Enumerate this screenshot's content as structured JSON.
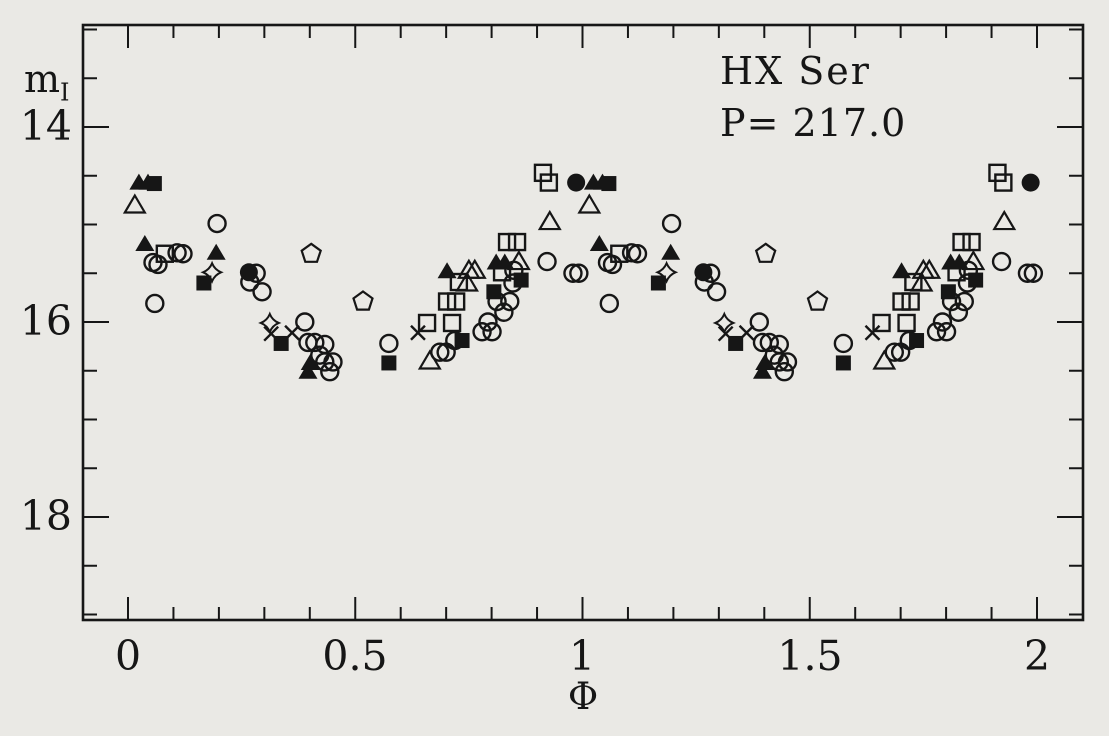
{
  "page": {
    "background_color": "#eae9e5",
    "ink_color": "#161616"
  },
  "chart_data": {
    "type": "scatter",
    "title": "HX Ser",
    "subtitle": "P= 217.0",
    "xlabel": "Φ",
    "ylabel": "m",
    "ylabel_sub": "I",
    "x_axis": {
      "min": -0.1,
      "max": 2.1,
      "major_ticks": [
        0,
        0.5,
        1,
        1.5,
        2
      ],
      "major_labels": [
        "0",
        "0.5",
        "1",
        "1.5",
        "2"
      ],
      "minor_step": 0.1
    },
    "y_axis": {
      "min": 12.95,
      "max": 19.05,
      "inverted": true,
      "major_ticks": [
        14,
        16,
        18
      ],
      "major_labels": [
        "14",
        "16",
        "18"
      ],
      "minor_step": 0.5
    },
    "legend": "none",
    "grid": false,
    "phase_plotted_twice": true,
    "series": [
      {
        "name": "open-circle",
        "marker": "open_circle",
        "points": [
          [
            0.196,
            14.99
          ],
          [
            0.108,
            15.29
          ],
          [
            0.121,
            15.3
          ],
          [
            0.055,
            15.39
          ],
          [
            0.066,
            15.41
          ],
          [
            0.059,
            15.81
          ],
          [
            0.282,
            15.5
          ],
          [
            0.268,
            15.59
          ],
          [
            0.295,
            15.69
          ],
          [
            0.389,
            16.0
          ],
          [
            0.396,
            16.21
          ],
          [
            0.411,
            16.21
          ],
          [
            0.433,
            16.23
          ],
          [
            0.422,
            16.34
          ],
          [
            0.433,
            16.41
          ],
          [
            0.451,
            16.41
          ],
          [
            0.444,
            16.51
          ],
          [
            0.574,
            16.22
          ],
          [
            0.686,
            16.31
          ],
          [
            0.7,
            16.31
          ],
          [
            0.719,
            16.19
          ],
          [
            0.779,
            16.1
          ],
          [
            0.801,
            16.1
          ],
          [
            0.792,
            16.0
          ],
          [
            0.812,
            15.79
          ],
          [
            0.84,
            15.79
          ],
          [
            0.827,
            15.9
          ],
          [
            0.849,
            15.47
          ],
          [
            0.847,
            15.6
          ],
          [
            0.922,
            15.38
          ],
          [
            0.979,
            15.5
          ],
          [
            0.992,
            15.5
          ]
        ]
      },
      {
        "name": "open-square",
        "marker": "open_square",
        "points": [
          [
            0.081,
            15.3
          ],
          [
            0.658,
            16.01
          ],
          [
            0.713,
            16.01
          ],
          [
            0.702,
            15.79
          ],
          [
            0.722,
            15.79
          ],
          [
            0.728,
            15.59
          ],
          [
            0.823,
            15.49
          ],
          [
            0.834,
            15.18
          ],
          [
            0.856,
            15.18
          ],
          [
            0.913,
            14.47
          ],
          [
            0.926,
            14.57
          ]
        ]
      },
      {
        "name": "open-triangle",
        "marker": "open_triangle",
        "points": [
          [
            0.015,
            14.8
          ],
          [
            0.664,
            16.4
          ],
          [
            0.746,
            15.6
          ],
          [
            0.75,
            15.47
          ],
          [
            0.763,
            15.47
          ],
          [
            0.86,
            15.38
          ],
          [
            0.928,
            14.97
          ]
        ]
      },
      {
        "name": "filled-triangle",
        "marker": "filled_triangle",
        "points": [
          [
            0.024,
            14.57
          ],
          [
            0.044,
            14.57
          ],
          [
            0.037,
            15.2
          ],
          [
            0.194,
            15.29
          ],
          [
            0.396,
            16.51
          ],
          [
            0.401,
            16.42
          ],
          [
            0.702,
            15.48
          ],
          [
            0.81,
            15.39
          ],
          [
            0.829,
            15.39
          ]
        ]
      },
      {
        "name": "filled-square",
        "marker": "filled_square",
        "points": [
          [
            0.058,
            14.58
          ],
          [
            0.167,
            15.6
          ],
          [
            0.337,
            16.22
          ],
          [
            0.574,
            16.42
          ],
          [
            0.735,
            16.19
          ],
          [
            0.805,
            15.69
          ],
          [
            0.865,
            15.57
          ]
        ]
      },
      {
        "name": "filled-circle",
        "marker": "filled_circle",
        "points": [
          [
            0.266,
            15.49
          ],
          [
            0.986,
            14.57
          ]
        ]
      },
      {
        "name": "cross",
        "marker": "cross",
        "points": [
          [
            0.315,
            16.12
          ],
          [
            0.361,
            16.11
          ],
          [
            0.638,
            16.11
          ]
        ]
      },
      {
        "name": "four-point-star",
        "marker": "star4",
        "points": [
          [
            0.185,
            15.49
          ],
          [
            0.312,
            16.01
          ]
        ]
      },
      {
        "name": "open-pentagon",
        "marker": "pentagon",
        "points": [
          [
            0.403,
            15.3
          ],
          [
            0.517,
            15.79
          ]
        ]
      }
    ]
  }
}
